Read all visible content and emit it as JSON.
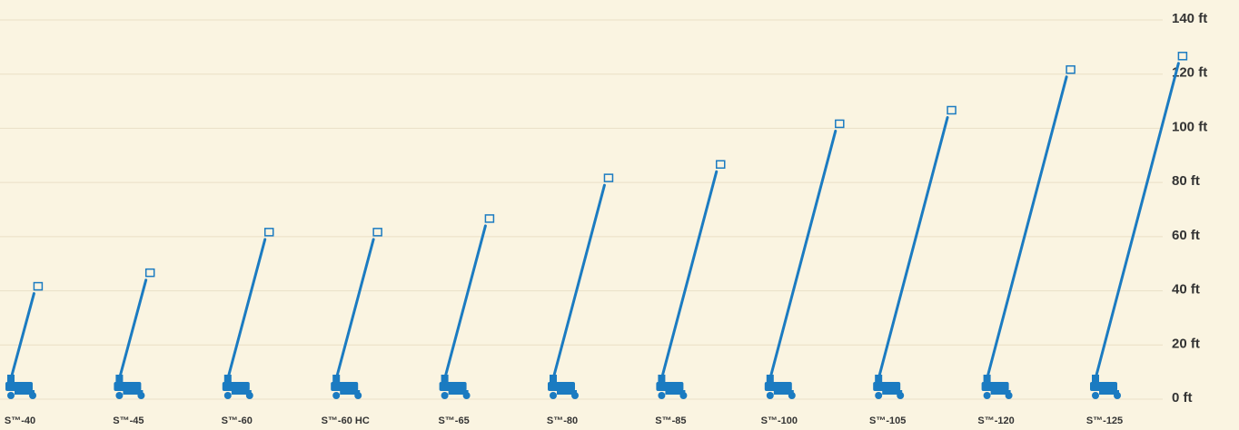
{
  "chart_data": {
    "type": "pictogram",
    "categories": [
      "S™-40",
      "S™-45",
      "S™-60",
      "S™-60 HC",
      "S™-65",
      "S™-80",
      "S™-85",
      "S™-100",
      "S™-105",
      "S™-120",
      "S™-125"
    ],
    "values": [
      40,
      45,
      60,
      60,
      65,
      80,
      85,
      100,
      105,
      120,
      125
    ],
    "color": "#1b7bc1",
    "ylim": [
      0,
      140
    ],
    "yticks": [
      {
        "value": 0,
        "label": "0 ft"
      },
      {
        "value": 20,
        "label": "20 ft"
      },
      {
        "value": 40,
        "label": "40 ft"
      },
      {
        "value": 60,
        "label": "60 ft"
      },
      {
        "value": 80,
        "label": "80 ft"
      },
      {
        "value": 100,
        "label": "100 ft"
      },
      {
        "value": 120,
        "label": "120 ft"
      },
      {
        "value": 140,
        "label": "140 ft"
      }
    ],
    "grid": true
  }
}
